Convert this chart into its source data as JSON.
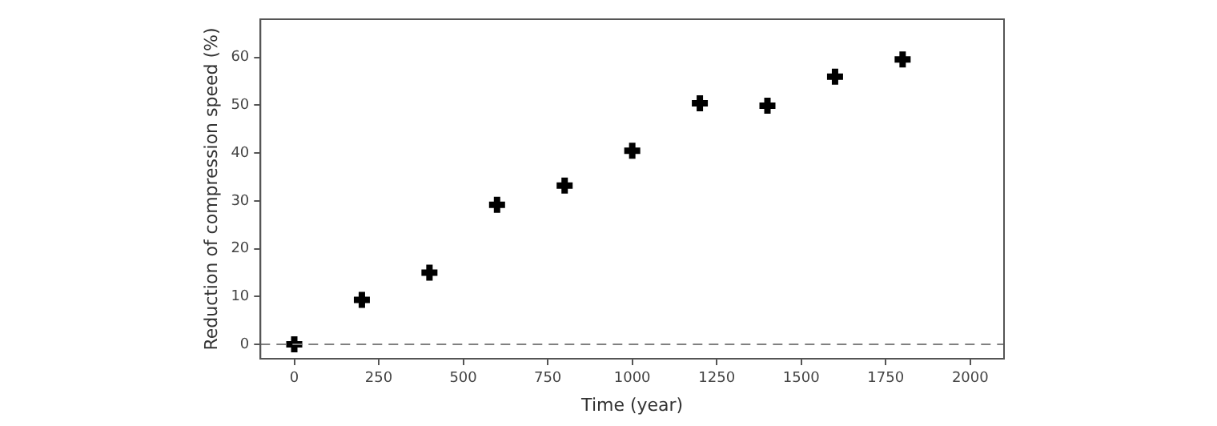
{
  "chart_data": {
    "type": "scatter",
    "xlabel": "Time (year)",
    "ylabel": "Reduction of compression speed (%)",
    "x": [
      0,
      200,
      400,
      600,
      800,
      1000,
      1200,
      1400,
      1600,
      1800
    ],
    "series": [
      {
        "color": "#000000",
        "values": [
          0,
          9.3,
          15,
          29.2,
          33.2,
          40.5,
          50.4,
          49.9,
          56,
          59.6
        ]
      }
    ],
    "xlim": [
      -100,
      2100
    ],
    "xticks": [
      0,
      250,
      500,
      750,
      1000,
      1250,
      1500,
      1750,
      2000
    ],
    "ylim": [
      -3,
      68
    ],
    "yticks": [
      0,
      10,
      20,
      30,
      40,
      50,
      60
    ],
    "ref_lines": [
      {
        "axis": "y",
        "value": 0,
        "color": "#808080",
        "line_style": "dashed"
      }
    ],
    "marker": "cross",
    "grid": false,
    "legend": false
  }
}
